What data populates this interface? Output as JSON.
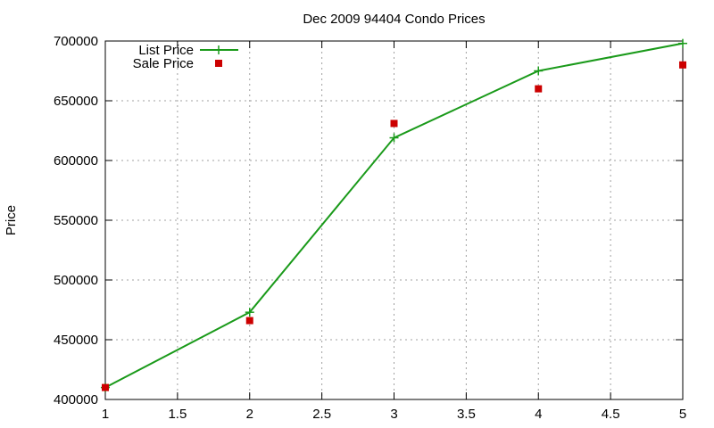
{
  "chart_data": {
    "type": "line",
    "title": "Dec 2009 94404 Condo Prices",
    "xlabel": "",
    "ylabel": "Price",
    "xlim": [
      1,
      5
    ],
    "ylim": [
      400000,
      700000
    ],
    "x_ticks": [
      1,
      1.5,
      2,
      2.5,
      3,
      3.5,
      4,
      4.5,
      5
    ],
    "x_tick_labels": [
      "1",
      "1.5",
      "2",
      "2.5",
      "3",
      "3.5",
      "4",
      "4.5",
      "5"
    ],
    "y_ticks": [
      400000,
      450000,
      500000,
      550000,
      600000,
      650000,
      700000
    ],
    "y_tick_labels": [
      "400000",
      "450000",
      "500000",
      "550000",
      "600000",
      "650000",
      "700000"
    ],
    "grid": true,
    "legend_position": "top-left",
    "series": [
      {
        "name": "List Price",
        "style": "line-with-plus-markers",
        "color": "#1a9a1a",
        "x": [
          1,
          2,
          3,
          4,
          5
        ],
        "values": [
          410000,
          473000,
          619000,
          675000,
          698000
        ]
      },
      {
        "name": "Sale Price",
        "style": "square-markers",
        "color": "#cc0000",
        "x": [
          1,
          2,
          3,
          4,
          5
        ],
        "values": [
          410000,
          466000,
          631000,
          660000,
          680000
        ]
      }
    ]
  }
}
